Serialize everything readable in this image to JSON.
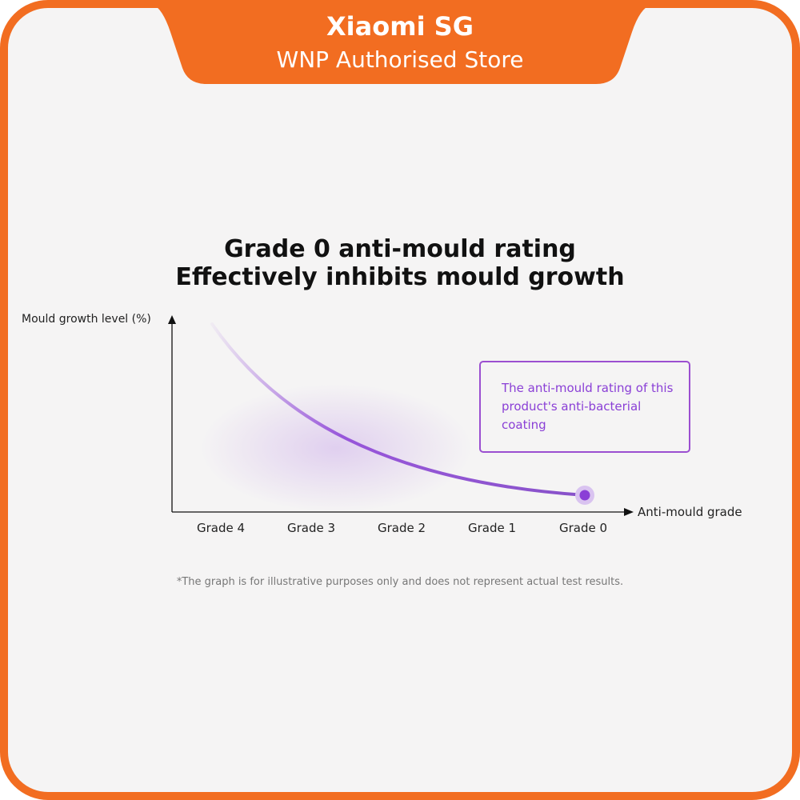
{
  "banner": {
    "title": "Xiaomi SG",
    "subtitle": "WNP Authorised Store"
  },
  "heading": {
    "line1": "Grade 0 anti-mould rating",
    "line2": "Effectively inhibits mould growth"
  },
  "graph": {
    "y_axis_label": "Mould growth level (%)",
    "x_axis_label": "Anti-mould grade",
    "categories": [
      "Grade 4",
      "Grade 3",
      "Grade 2",
      "Grade 1",
      "Grade 0"
    ],
    "callout": "The anti-mould rating of this product's anti-bacterial coating"
  },
  "footnote": "*The graph is for illustrative purposes only and does not represent actual test results."
}
